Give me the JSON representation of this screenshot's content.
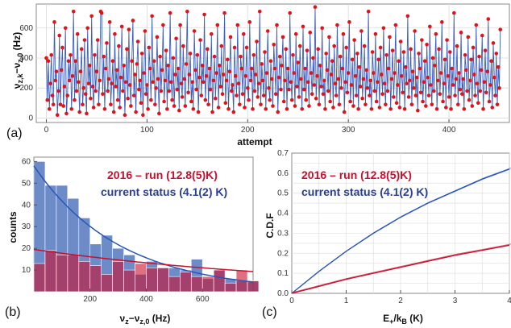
{
  "chart_data": [
    {
      "panel": "(a)",
      "type": "line",
      "xlabel": "attempt",
      "ylabel": "ν_{z,k}−ν_{z,0} (Hz)",
      "xlim": [
        -10,
        460
      ],
      "ylim": [
        -30,
        760
      ],
      "xticks": [
        0,
        100,
        200,
        300,
        400
      ],
      "yticks": [
        0,
        200,
        400,
        600
      ],
      "x_start": 0,
      "x_step": 1,
      "series_color": "#3b5fc0",
      "marker_color": "#e0121a",
      "grid": true,
      "values": [
        400,
        120,
        380,
        60,
        230,
        420,
        150,
        90,
        640,
        250,
        310,
        20,
        180,
        550,
        90,
        320,
        470,
        80,
        210,
        600,
        30,
        150,
        380,
        250,
        420,
        60,
        280,
        710,
        120,
        380,
        180,
        560,
        240,
        40,
        310,
        460,
        90,
        200,
        520,
        160,
        30,
        600,
        230,
        350,
        130,
        680,
        210,
        70,
        420,
        180,
        310,
        520,
        90,
        250,
        710,
        700,
        160,
        410,
        60,
        330,
        500,
        180,
        260,
        640,
        90,
        230,
        380,
        40,
        560,
        210,
        320,
        120,
        480,
        70,
        270,
        610,
        180,
        350,
        20,
        240,
        460,
        130,
        590,
        220,
        80,
        380,
        650,
        150,
        290,
        40,
        360,
        510,
        190,
        250,
        100,
        430,
        20,
        300,
        580,
        160,
        220,
        60,
        470,
        330,
        120,
        680,
        240,
        380,
        90,
        200,
        540,
        260,
        30,
        410,
        180,
        320,
        620,
        110,
        250,
        450,
        60,
        350,
        180,
        700,
        240,
        120,
        400,
        80,
        290,
        530,
        190,
        330,
        50,
        620,
        230,
        140,
        480,
        260,
        80,
        360,
        710,
        170,
        290,
        430,
        110,
        240,
        60,
        580,
        320,
        190,
        420,
        40,
        270,
        520,
        150,
        350,
        240,
        690,
        120,
        280,
        460,
        90,
        330,
        190,
        560,
        40,
        250,
        410,
        130,
        300,
        620,
        70,
        350,
        210,
        480,
        160,
        290,
        700,
        100,
        250,
        390,
        60,
        310,
        540,
        180,
        220,
        40,
        470,
        280,
        150,
        620,
        230,
        90,
        410,
        330,
        160,
        560,
        70,
        280,
        470,
        200,
        120,
        640,
        250,
        330,
        60,
        420,
        180,
        290,
        510,
        140,
        230,
        710,
        90,
        360,
        250,
        150,
        440,
        60,
        300,
        580,
        200,
        120,
        380,
        260,
        80,
        490,
        330,
        160,
        620,
        40,
        270,
        410,
        190,
        350,
        540,
        110,
        250,
        460,
        60,
        330,
        190,
        700,
        240,
        120,
        420,
        300,
        80,
        560,
        210,
        370,
        140,
        480,
        260,
        60,
        610,
        190,
        330,
        120,
        450,
        240,
        80,
        570,
        300,
        160,
        400,
        220,
        740,
        130,
        280,
        460,
        90,
        350,
        210,
        600,
        160,
        250,
        60,
        430,
        320,
        180,
        540,
        110,
        290,
        380,
        70,
        480,
        230,
        150,
        620,
        260,
        90,
        410,
        200,
        330,
        560,
        40,
        240,
        470,
        170,
        300,
        640,
        110,
        220,
        390,
        80,
        520,
        280,
        150,
        430,
        60,
        340,
        210,
        580,
        130,
        260,
        480,
        90,
        320,
        200,
        710,
        150,
        250,
        60,
        440,
        300,
        180,
        560,
        110,
        240,
        390,
        70,
        470,
        290,
        160,
        600,
        230,
        90,
        420,
        180,
        330,
        540,
        60,
        260,
        450,
        140,
        300,
        620,
        100,
        220,
        380,
        70,
        510,
        280,
        170,
        440,
        60,
        340,
        230,
        680,
        140,
        250,
        460,
        90,
        310,
        200,
        580,
        150,
        270,
        50,
        430,
        330,
        170,
        520,
        110,
        240,
        380,
        80,
        490,
        270,
        150,
        610,
        220,
        90,
        400,
        180,
        350,
        560,
        60,
        250,
        460,
        160,
        300,
        640,
        110,
        230,
        390,
        70,
        520,
        280,
        140,
        440,
        60,
        330,
        220,
        700,
        150,
        260,
        480,
        90,
        300,
        190,
        570,
        160,
        260,
        60,
        420,
        320,
        180,
        540,
        120,
        250,
        390,
        80,
        470,
        290,
        150,
        620,
        230,
        100,
        410,
        180,
        320,
        550,
        60,
        240,
        450,
        170,
        310,
        660,
        110,
        220,
        380,
        70,
        500,
        270,
        150,
        430,
        90,
        340,
        200,
        590
      ]
    },
    {
      "panel": "(b)",
      "type": "bar",
      "xlabel": "ν_z−ν_{z,0} (Hz)",
      "ylabel": "counts",
      "xlim": [
        0,
        780
      ],
      "ylim": [
        0,
        62
      ],
      "xticks": [
        200,
        400,
        600
      ],
      "yticks": [
        10,
        20,
        30,
        40,
        50,
        60
      ],
      "bin_width": 40,
      "bin_starts": [
        0,
        40,
        80,
        120,
        160,
        200,
        240,
        280,
        320,
        360,
        400,
        440,
        480,
        520,
        560,
        600,
        640,
        680,
        720,
        760
      ],
      "series": [
        {
          "name": "current status (4.1(2) K)",
          "color": "#3c64b4",
          "values": [
            60,
            49,
            49,
            43,
            34,
            22,
            26,
            20,
            17,
            8,
            14,
            11,
            11,
            10,
            15,
            6,
            10,
            6,
            5,
            5
          ]
        },
        {
          "name": "2016 – run (12.8(5)K)",
          "color": "#c8102e",
          "values": [
            13,
            19,
            17,
            17,
            14,
            12,
            8,
            14,
            10,
            13,
            11,
            11,
            7,
            9,
            7,
            7,
            10,
            4,
            10,
            5
          ]
        }
      ],
      "fits": [
        {
          "color": "#2a55b8",
          "type": "exponential",
          "a": 58,
          "tau": 305
        },
        {
          "color": "#c8102e",
          "type": "exponential",
          "a": 19.5,
          "tau": 1050
        }
      ],
      "legend": [
        {
          "label": "2016 – run (12.8(5)K)",
          "color": "#c8102e"
        },
        {
          "label": "current status (4.1(2) K)",
          "color": "#2a3f8f"
        }
      ]
    },
    {
      "panel": "(c)",
      "type": "line",
      "xlabel": "E₊/k_B (K)",
      "ylabel": "C.D.F",
      "xlim": [
        0,
        4
      ],
      "ylim": [
        0,
        0.7
      ],
      "xticks": [
        0,
        1,
        2,
        3,
        4
      ],
      "yticks": [
        0.0,
        0.1,
        0.2,
        0.3,
        0.4,
        0.5,
        0.6,
        0.7
      ],
      "grid": true,
      "series": [
        {
          "name": "current status (4.1(2) K)",
          "color": "#2a55b8",
          "x": [
            0,
            0.5,
            1,
            1.5,
            2,
            2.5,
            3,
            3.5,
            4
          ],
          "y": [
            0,
            0.11,
            0.21,
            0.3,
            0.38,
            0.45,
            0.51,
            0.57,
            0.62
          ]
        },
        {
          "name": "2016 – run (12.8(5)K)",
          "color": "#c8102e",
          "x": [
            0,
            0.5,
            1,
            1.5,
            2,
            2.5,
            3,
            3.5,
            4
          ],
          "y": [
            0,
            0.035,
            0.07,
            0.1,
            0.13,
            0.16,
            0.19,
            0.215,
            0.24
          ]
        }
      ],
      "legend": [
        {
          "label": "2016 – run (12.8(5)K)",
          "color": "#c8102e"
        },
        {
          "label": "current status (4.1(2) K)",
          "color": "#2a3f8f"
        }
      ]
    }
  ],
  "texts": {
    "panel_a": "(a)",
    "panel_b": "(b)",
    "panel_c": "(c)",
    "a_xlabel": "attempt",
    "a_ylabel": "ν",
    "a_ylabel_sub1": "z,k",
    "a_ylabel_mid": "−ν",
    "a_ylabel_sub2": "z,0",
    "a_ylabel_unit": " (Hz)",
    "b_xlabel": "ν",
    "b_xlabel_sub1": "z",
    "b_xlabel_mid": "−ν",
    "b_xlabel_sub2": "z,0",
    "b_xlabel_unit": " (Hz)",
    "b_ylabel": "counts",
    "c_xlabel": "E",
    "c_xlabel_sub1": "+",
    "c_xlabel_mid": "/k",
    "c_xlabel_sub2": "B",
    "c_xlabel_unit": " (K)",
    "c_ylabel": "C.D.F",
    "legend_red": "2016 – run (12.8(5)K)",
    "legend_blue": "current status (4.1(2) K)"
  }
}
